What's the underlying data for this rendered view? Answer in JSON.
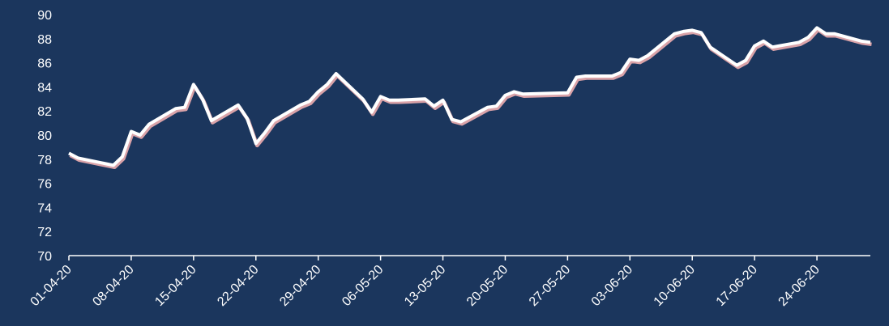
{
  "chart_data": {
    "type": "line",
    "title": "",
    "xlabel": "",
    "ylabel": "",
    "ylim": [
      70,
      90
    ],
    "yticks": [
      70,
      72,
      74,
      76,
      78,
      80,
      82,
      84,
      86,
      88,
      90
    ],
    "grid": false,
    "legend": "none",
    "x_tick_labels": [
      "01-04-20",
      "08-04-20",
      "15-04-20",
      "22-04-20",
      "29-04-20",
      "06-05-20",
      "13-05-20",
      "20-05-20",
      "27-05-20",
      "03-06-20",
      "10-06-20",
      "17-06-20",
      "24-06-20"
    ],
    "series": [
      {
        "x": [
          "2020-04-01",
          "2020-04-02",
          "2020-04-06",
          "2020-04-07",
          "2020-04-08",
          "2020-04-09",
          "2020-04-10",
          "2020-04-13",
          "2020-04-14",
          "2020-04-15",
          "2020-04-16",
          "2020-04-17",
          "2020-04-20",
          "2020-04-21",
          "2020-04-22",
          "2020-04-23",
          "2020-04-24",
          "2020-04-27",
          "2020-04-28",
          "2020-04-29",
          "2020-04-30",
          "2020-05-01",
          "2020-05-04",
          "2020-05-05",
          "2020-05-06",
          "2020-05-07",
          "2020-05-08",
          "2020-05-11",
          "2020-05-12",
          "2020-05-13",
          "2020-05-14",
          "2020-05-15",
          "2020-05-18",
          "2020-05-19",
          "2020-05-20",
          "2020-05-21",
          "2020-05-22",
          "2020-05-27",
          "2020-05-28",
          "2020-05-29",
          "2020-06-01",
          "2020-06-02",
          "2020-06-03",
          "2020-06-04",
          "2020-06-05",
          "2020-06-08",
          "2020-06-09",
          "2020-06-10",
          "2020-06-11",
          "2020-06-12",
          "2020-06-15",
          "2020-06-16",
          "2020-06-17",
          "2020-06-18",
          "2020-06-19",
          "2020-06-22",
          "2020-06-23",
          "2020-06-24",
          "2020-06-25",
          "2020-06-26",
          "2020-06-29",
          "2020-06-30"
        ],
        "values": [
          78.5,
          78.1,
          77.5,
          78.2,
          80.3,
          80.0,
          80.9,
          82.2,
          82.3,
          84.2,
          83.0,
          81.2,
          82.5,
          81.4,
          79.3,
          80.2,
          81.2,
          82.5,
          82.8,
          83.6,
          84.2,
          85.1,
          83.0,
          81.9,
          83.2,
          82.9,
          82.9,
          83.0,
          82.4,
          82.9,
          81.3,
          81.1,
          82.3,
          82.4,
          83.3,
          83.6,
          83.4,
          83.5,
          84.8,
          84.9,
          84.9,
          85.2,
          86.3,
          86.2,
          86.6,
          88.4,
          88.6,
          88.7,
          88.5,
          87.3,
          85.8,
          86.2,
          87.4,
          87.8,
          87.3,
          87.7,
          88.1,
          88.9,
          88.4,
          88.4,
          87.8,
          87.7
        ]
      }
    ]
  }
}
